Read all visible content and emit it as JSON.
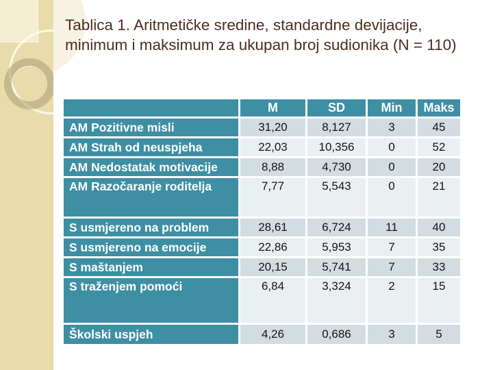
{
  "slide_title": "Tablica 1. Aritmetičke sredine, standardne devijacije, minimum i maksimum za ukupan broj sudionika (N = 110)",
  "table": {
    "columns": [
      "",
      "M",
      "SD",
      "Min",
      "Maks"
    ],
    "rows": [
      {
        "label": "AM Pozitivne misli",
        "values": [
          "31,20",
          "8,127",
          "3",
          "45"
        ],
        "tall": 0
      },
      {
        "label": "AM Strah od neuspjeha",
        "values": [
          "22,03",
          "10,356",
          "0",
          "52"
        ],
        "tall": 0
      },
      {
        "label": "AM Nedostatak motivacije",
        "values": [
          "8,88",
          "4,730",
          "0",
          "20"
        ],
        "tall": 0
      },
      {
        "label": "AM Razočaranje roditelja",
        "values": [
          "7,77",
          "5,543",
          "0",
          "21"
        ],
        "tall": 1
      },
      {
        "label": "S usmjereno na problem",
        "values": [
          "28,61",
          "6,724",
          "11",
          "40"
        ],
        "tall": 0
      },
      {
        "label": "S usmjereno na emocije",
        "values": [
          "22,86",
          "5,953",
          "7",
          "35"
        ],
        "tall": 0
      },
      {
        "label": "S maštanjem",
        "values": [
          "20,15",
          "5,741",
          "7",
          "33"
        ],
        "tall": 0
      },
      {
        "label": "S traženjem pomoći",
        "values": [
          "6,84",
          "3,324",
          "2",
          "15"
        ],
        "tall": 2
      },
      {
        "label": "Školski uspjeh",
        "values": [
          "4,26",
          "0,686",
          "3",
          "5"
        ],
        "tall": 0
      }
    ]
  },
  "colors": {
    "teal": "#3E8FA4",
    "band_dark": "#D3DCE0",
    "band_light": "#EAEFF1",
    "stripe": "#E9DBAA",
    "title_text": "#4B2D1F"
  }
}
